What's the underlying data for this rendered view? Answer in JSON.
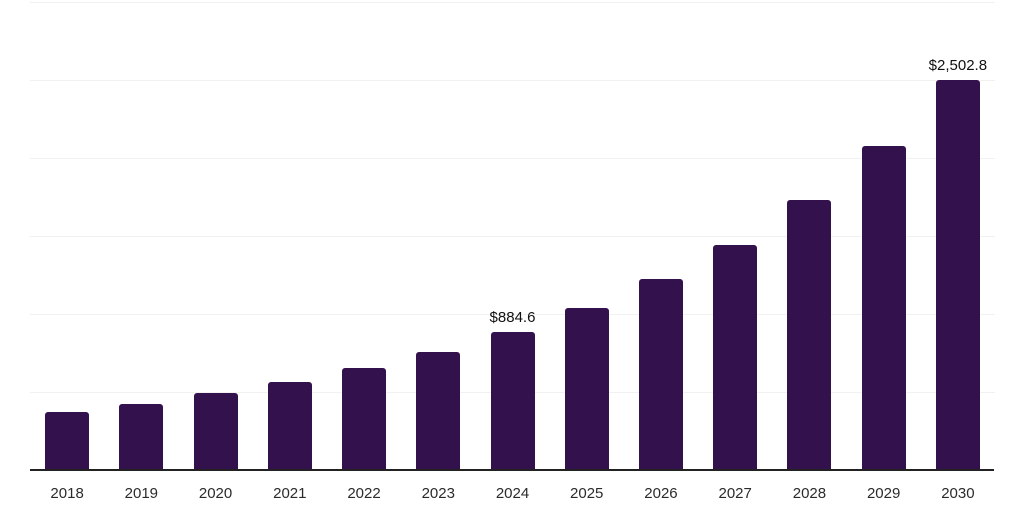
{
  "chart_data": {
    "type": "bar",
    "title": "",
    "xlabel": "",
    "ylabel": "",
    "categories": [
      "2018",
      "2019",
      "2020",
      "2021",
      "2022",
      "2023",
      "2024",
      "2025",
      "2026",
      "2027",
      "2028",
      "2029",
      "2030"
    ],
    "values": [
      374,
      425,
      492,
      566,
      652,
      757,
      884.6,
      1038,
      1222,
      1443,
      1728,
      2078,
      2502.8
    ],
    "value_labels": [
      "",
      "",
      "",
      "",
      "",
      "",
      "$884.6",
      "",
      "",
      "",
      "",
      "",
      "$2,502.8"
    ],
    "ylim": [
      0,
      3000
    ],
    "gridline_interval": 500,
    "grid": true,
    "legend": "none",
    "bar_color": "#33114d",
    "axis_color": "#222222",
    "grid_color": "#f1f1f1",
    "value_label_color": "#111111",
    "tick_label_color": "#2b2b2b"
  }
}
